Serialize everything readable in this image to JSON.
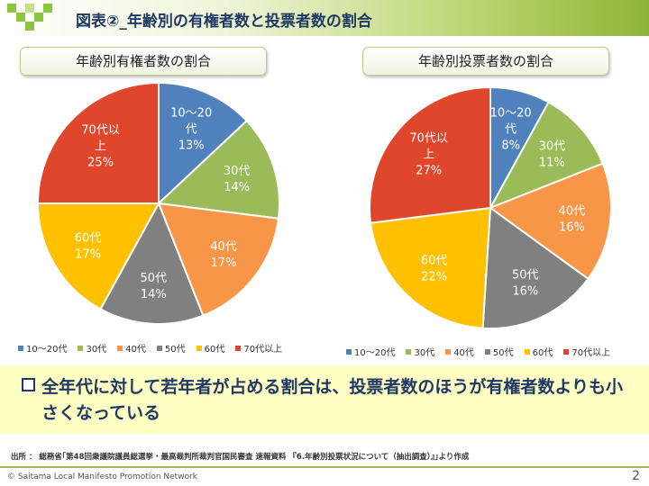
{
  "header": {
    "title": "図表②_年齢別の有権者数と投票者数の割合"
  },
  "chart_data": [
    {
      "type": "pie",
      "title": "年齢別有権者数の割合",
      "categories": [
        "10～20代",
        "30代",
        "40代",
        "50代",
        "60代",
        "70代以上"
      ],
      "values": [
        13,
        14,
        17,
        14,
        17,
        25
      ],
      "value_labels": [
        "13%",
        "14%",
        "17%",
        "14%",
        "17%",
        "25%"
      ],
      "slice_labels": [
        [
          "10～20",
          "代",
          "13%"
        ],
        [
          "30代",
          "14%"
        ],
        [
          "40代",
          "17%"
        ],
        [
          "50代",
          "14%"
        ],
        [
          "60代",
          "17%"
        ],
        [
          "70代以",
          "上",
          "25%"
        ]
      ],
      "colors": [
        "#4f81bd",
        "#9bbb59",
        "#f79646",
        "#808080",
        "#ffc000",
        "#e0462b"
      ],
      "legend_position": "bottom"
    },
    {
      "type": "pie",
      "title": "年齢別投票者数の割合",
      "categories": [
        "10～20代",
        "30代",
        "40代",
        "50代",
        "60代",
        "70代以上"
      ],
      "values": [
        8,
        11,
        16,
        16,
        22,
        27
      ],
      "value_labels": [
        "8%",
        "11%",
        "16%",
        "16%",
        "22%",
        "27%"
      ],
      "slice_labels": [
        [
          "10～20",
          "代",
          "8%"
        ],
        [
          "30代",
          "11%"
        ],
        [
          "40代",
          "16%"
        ],
        [
          "50代",
          "16%"
        ],
        [
          "60代",
          "22%"
        ],
        [
          "70代以",
          "上",
          "27%"
        ]
      ],
      "colors": [
        "#4f81bd",
        "#9bbb59",
        "#f79646",
        "#808080",
        "#ffc000",
        "#e0462b"
      ],
      "legend_position": "bottom"
    }
  ],
  "conclusion": {
    "text": "全年代に対して若年者が占める割合は、投票者数のほうが有権者数よりも小さくなっている"
  },
  "source": {
    "text": "出所 ： 総務省｢第48回衆議院議員総選挙・最高裁判所裁判官国民審査 速報資料 『6.年齢別投票状況について（抽出調査）』｣より作成"
  },
  "footer": {
    "copyright": "© Saitama Local Manifesto Promotion Network",
    "page_number": "2"
  }
}
